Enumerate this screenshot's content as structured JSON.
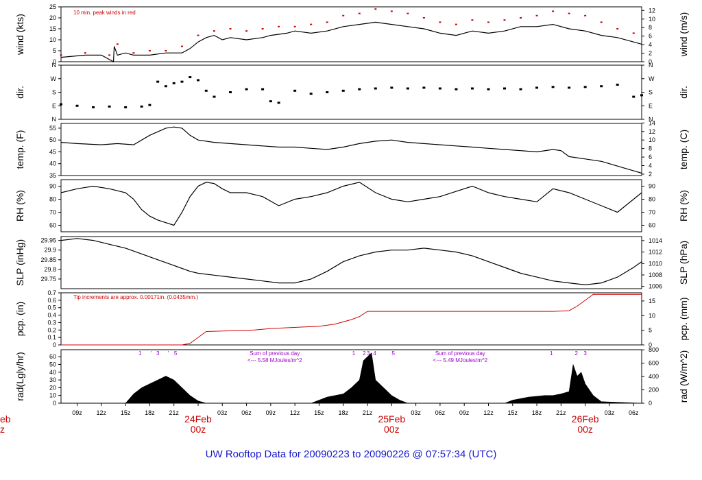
{
  "chart_data": {
    "type": "line",
    "title": "UW Rooftop Data for 20090223  to  20090226 @ 07:57:34  (UTC)",
    "colors": {
      "title": "#1a1acc",
      "day": "#cc0000",
      "precip": "#cc0000",
      "peak": "#cc0000",
      "annotation": "#9900cc",
      "series": "#000000"
    },
    "x_hours_range": [
      7,
      79
    ],
    "x_ticks": [
      {
        "h": 9,
        "label": "09z"
      },
      {
        "h": 12,
        "label": "12z"
      },
      {
        "h": 15,
        "label": "15z"
      },
      {
        "h": 18,
        "label": "18z"
      },
      {
        "h": 21,
        "label": "21z"
      },
      {
        "h": 27,
        "label": "03z"
      },
      {
        "h": 30,
        "label": "06z"
      },
      {
        "h": 33,
        "label": "09z"
      },
      {
        "h": 36,
        "label": "12z"
      },
      {
        "h": 39,
        "label": "15z"
      },
      {
        "h": 42,
        "label": "18z"
      },
      {
        "h": 45,
        "label": "21z"
      },
      {
        "h": 51,
        "label": "03z"
      },
      {
        "h": 54,
        "label": "06z"
      },
      {
        "h": 57,
        "label": "09z"
      },
      {
        "h": 60,
        "label": "12z"
      },
      {
        "h": 63,
        "label": "15z"
      },
      {
        "h": 66,
        "label": "18z"
      },
      {
        "h": 69,
        "label": "21z"
      },
      {
        "h": 75,
        "label": "03z"
      },
      {
        "h": 78,
        "label": "06z"
      }
    ],
    "day_labels": [
      {
        "h": 24,
        "date": "24Feb",
        "hour": "00z"
      },
      {
        "h": 48,
        "date": "25Feb",
        "hour": "00z"
      },
      {
        "h": 72,
        "date": "26Feb",
        "hour": "00z"
      }
    ],
    "day_edge": {
      "date": "eb",
      "hour": "z"
    },
    "panels": [
      {
        "id": "wind",
        "ylabel": "wind (kts)",
        "ylabel_right": "wind (m/s)",
        "ylim": [
          0,
          25
        ],
        "yticks": [
          0,
          5,
          10,
          15,
          20,
          25
        ],
        "ylim_right": [
          0,
          12.86
        ],
        "yticks_right": [
          0,
          2,
          4,
          6,
          8,
          10,
          12
        ],
        "annotation": "10 min. peak winds in red",
        "series": [
          {
            "name": "wind",
            "x": [
              7,
              10,
              12,
              13.5,
              13.6,
              14,
              15,
              16,
              18,
              20,
              22,
              23,
              24,
              25,
              26,
              27,
              28,
              30,
              32,
              33,
              35,
              36,
              38,
              40,
              42,
              44,
              46,
              48,
              50,
              52,
              54,
              56,
              58,
              60,
              62,
              64,
              66,
              68,
              70,
              72,
              74,
              76,
              78,
              79
            ],
            "y": [
              2,
              3,
              3,
              0,
              7,
              3,
              4,
              3,
              3,
              4,
              4,
              6,
              9,
              11,
              12,
              10,
              11,
              10,
              11,
              12,
              13,
              14,
              13,
              14,
              16,
              17,
              18,
              17,
              16,
              15,
              13,
              12,
              14,
              13,
              14,
              16,
              16,
              17,
              15,
              14,
              12,
              11,
              9,
              8
            ]
          }
        ],
        "peaks": {
          "name": "peak",
          "x": [
            7,
            10,
            13,
            14,
            16,
            18,
            20,
            22,
            24,
            26,
            28,
            30,
            32,
            34,
            36,
            38,
            40,
            42,
            44,
            46,
            48,
            50,
            52,
            54,
            56,
            58,
            60,
            62,
            64,
            66,
            68,
            70,
            72,
            74,
            76,
            78
          ],
          "y": [
            3,
            4,
            3,
            8,
            4,
            5,
            5,
            7,
            12,
            14,
            15,
            14,
            15,
            16,
            16,
            17,
            18,
            21,
            22,
            24,
            23,
            22,
            20,
            18,
            17,
            19,
            18,
            19,
            20,
            21,
            23,
            22,
            21,
            18,
            15,
            13
          ]
        }
      },
      {
        "id": "dir",
        "ylabel": "dir.",
        "ylabel_right": "dir.",
        "ylim": [
          0,
          360
        ],
        "ytick_values": [
          0,
          90,
          180,
          270,
          360
        ],
        "ytick_labels": [
          "N",
          "E",
          "S",
          "W",
          "N"
        ],
        "series": [
          {
            "name": "direction",
            "x": [
              7,
              9,
              11,
              13,
              15,
              17,
              18,
              19,
              20,
              21,
              22,
              23,
              24,
              25,
              26,
              28,
              30,
              32,
              33,
              34,
              36,
              38,
              40,
              42,
              44,
              46,
              48,
              50,
              52,
              54,
              56,
              58,
              60,
              62,
              64,
              66,
              68,
              70,
              72,
              74,
              76,
              78,
              79
            ],
            "y": [
              100,
              90,
              80,
              85,
              80,
              85,
              95,
              250,
              220,
              240,
              250,
              280,
              260,
              190,
              150,
              180,
              200,
              200,
              120,
              110,
              190,
              170,
              180,
              190,
              200,
              205,
              210,
              205,
              210,
              205,
              200,
              205,
              200,
              205,
              200,
              210,
              215,
              210,
              215,
              220,
              230,
              150,
              160
            ]
          }
        ]
      },
      {
        "id": "temp",
        "ylabel": "temp. (F)",
        "ylabel_right": "temp. (C)",
        "ylim": [
          35,
          57
        ],
        "yticks": [
          35,
          40,
          45,
          50,
          55
        ],
        "ylim_right": [
          1.67,
          13.89
        ],
        "yticks_right": [
          2,
          4,
          6,
          8,
          10,
          12,
          14
        ],
        "series": [
          {
            "name": "temperature",
            "x": [
              7,
              9,
              12,
              14,
              16,
              18,
              20,
              21,
              22,
              23,
              24,
              26,
              28,
              30,
              32,
              34,
              36,
              38,
              40,
              42,
              44,
              46,
              48,
              50,
              52,
              54,
              56,
              58,
              60,
              62,
              64,
              66,
              68,
              69,
              70,
              72,
              74,
              76,
              78,
              79
            ],
            "y": [
              49,
              48.5,
              48,
              48.5,
              48,
              52,
              55,
              55.5,
              55,
              52,
              50,
              49,
              48.5,
              48,
              47.5,
              47,
              47,
              46.5,
              46,
              47,
              48.5,
              49.5,
              50,
              49,
              48.5,
              48,
              47.5,
              47,
              46.5,
              46,
              45.5,
              45,
              46,
              45.5,
              43,
              42,
              41,
              39,
              37,
              36
            ]
          }
        ]
      },
      {
        "id": "rh",
        "ylabel": "RH (%)",
        "ylabel_right": "RH (%)",
        "ylim": [
          55,
          95
        ],
        "yticks": [
          60,
          70,
          80,
          90
        ],
        "ylim_right": [
          55,
          95
        ],
        "yticks_right": [
          60,
          70,
          80,
          90
        ],
        "series": [
          {
            "name": "humidity",
            "x": [
              7,
              9,
              11,
              13,
              15,
              16,
              17,
              18,
              19,
              20,
              21,
              22,
              23,
              24,
              25,
              26,
              27,
              28,
              30,
              32,
              34,
              36,
              38,
              40,
              42,
              44,
              46,
              48,
              50,
              52,
              54,
              56,
              58,
              60,
              62,
              64,
              66,
              68,
              70,
              72,
              74,
              76,
              78,
              79
            ],
            "y": [
              85,
              88,
              90,
              88,
              85,
              80,
              72,
              67,
              64,
              62,
              60,
              70,
              82,
              90,
              93,
              92,
              88,
              85,
              85,
              82,
              75,
              80,
              82,
              85,
              90,
              93,
              85,
              80,
              78,
              80,
              82,
              86,
              90,
              85,
              82,
              80,
              78,
              88,
              85,
              80,
              75,
              70,
              80,
              85
            ]
          }
        ]
      },
      {
        "id": "slp",
        "ylabel": "SLP (inHg)",
        "ylabel_right": "SLP (hPa)",
        "ylim": [
          29.7,
          29.97
        ],
        "yticks": [
          29.75,
          29.8,
          29.85,
          29.9,
          29.95
        ],
        "ylim_right": [
          1005.6,
          1014.7
        ],
        "yticks_right": [
          1006,
          1008,
          1010,
          1012,
          1014
        ],
        "series": [
          {
            "name": "pressure",
            "x": [
              7,
              9,
              11,
              13,
              15,
              17,
              19,
              21,
              23,
              24,
              26,
              28,
              30,
              32,
              34,
              36,
              38,
              40,
              42,
              44,
              46,
              48,
              50,
              52,
              54,
              56,
              58,
              60,
              62,
              64,
              66,
              68,
              70,
              72,
              74,
              76,
              78,
              79
            ],
            "y": [
              29.95,
              29.96,
              29.95,
              29.93,
              29.91,
              29.88,
              29.85,
              29.82,
              29.79,
              29.78,
              29.77,
              29.76,
              29.75,
              29.74,
              29.73,
              29.73,
              29.75,
              29.79,
              29.84,
              29.87,
              29.89,
              29.9,
              29.9,
              29.91,
              29.9,
              29.89,
              29.87,
              29.84,
              29.81,
              29.78,
              29.76,
              29.74,
              29.73,
              29.72,
              29.73,
              29.76,
              29.81,
              29.84
            ]
          }
        ]
      },
      {
        "id": "pcp",
        "ylabel": "pcp. (in)",
        "ylabel_right": "pcp. (mm)",
        "ylim": [
          0,
          0.7
        ],
        "yticks": [
          0,
          0.1,
          0.2,
          0.3,
          0.4,
          0.5,
          0.6,
          0.7
        ],
        "ylim_right": [
          0,
          17.78
        ],
        "yticks_right": [
          0,
          5,
          10,
          15
        ],
        "annotation": "Tip increments are approx. 0.00171in. (0.0435mm.)",
        "series": [
          {
            "name": "precipitation",
            "x": [
              7,
              22,
              23,
              24,
              25,
              28,
              31,
              33,
              35,
              37,
              39,
              41,
              43,
              44,
              45,
              48,
              52,
              56,
              60,
              64,
              68,
              70,
              71,
              72,
              73,
              79
            ],
            "y": [
              0,
              0,
              0.02,
              0.1,
              0.18,
              0.19,
              0.2,
              0.22,
              0.23,
              0.24,
              0.25,
              0.28,
              0.34,
              0.38,
              0.45,
              0.45,
              0.45,
              0.45,
              0.45,
              0.45,
              0.45,
              0.46,
              0.52,
              0.6,
              0.68,
              0.68
            ]
          }
        ]
      },
      {
        "id": "rad",
        "ylabel": "rad(Lgly/hr)",
        "ylabel_right": "rad (W/m^2)",
        "ylim": [
          0,
          69
        ],
        "yticks": [
          0,
          10,
          20,
          30,
          40,
          50,
          60
        ],
        "ylim_right": [
          0,
          802
        ],
        "yticks_right": [
          0,
          200,
          400,
          600,
          800
        ],
        "event_markers": [
          {
            "h": 16.8,
            "label": "1"
          },
          {
            "h": 18.2,
            "label": "'"
          },
          {
            "h": 19.0,
            "label": "3"
          },
          {
            "h": 20.3,
            "label": "'"
          },
          {
            "h": 21.2,
            "label": "5"
          },
          {
            "h": 43.3,
            "label": "1"
          },
          {
            "h": 44.6,
            "label": "2"
          },
          {
            "h": 45.1,
            "label": "3"
          },
          {
            "h": 45.9,
            "label": "4"
          },
          {
            "h": 48.2,
            "label": "5"
          },
          {
            "h": 67.8,
            "label": "1"
          },
          {
            "h": 70.9,
            "label": "2"
          },
          {
            "h": 72.0,
            "label": "3"
          }
        ],
        "daily_notes": [
          {
            "h": 33.5,
            "line1": "Sum of previous day",
            "line2": "<--- 5.58 MJoules/m^2"
          },
          {
            "h": 56.5,
            "line1": "Sum of previous day",
            "line2": "<--- 5.49 MJoules/m^2"
          }
        ],
        "series": [
          {
            "name": "radiation",
            "x": [
              7,
              15,
              16,
              17,
              18,
              19,
              20,
              21,
              22,
              23,
              24,
              25,
              38,
              40,
              42,
              43,
              44,
              44.5,
              45,
              45.5,
              46,
              47,
              48,
              49,
              50,
              62,
              63,
              65,
              67,
              68,
              69,
              70,
              70.5,
              71,
              71.5,
              72,
              73,
              74,
              79
            ],
            "y": [
              0,
              0,
              12,
              20,
              25,
              30,
              35,
              30,
              20,
              10,
              3,
              0,
              0,
              8,
              12,
              20,
              30,
              55,
              60,
              65,
              30,
              20,
              10,
              4,
              0,
              0,
              4,
              8,
              10,
              10,
              12,
              15,
              50,
              35,
              40,
              25,
              10,
              2,
              0
            ]
          }
        ]
      }
    ]
  }
}
